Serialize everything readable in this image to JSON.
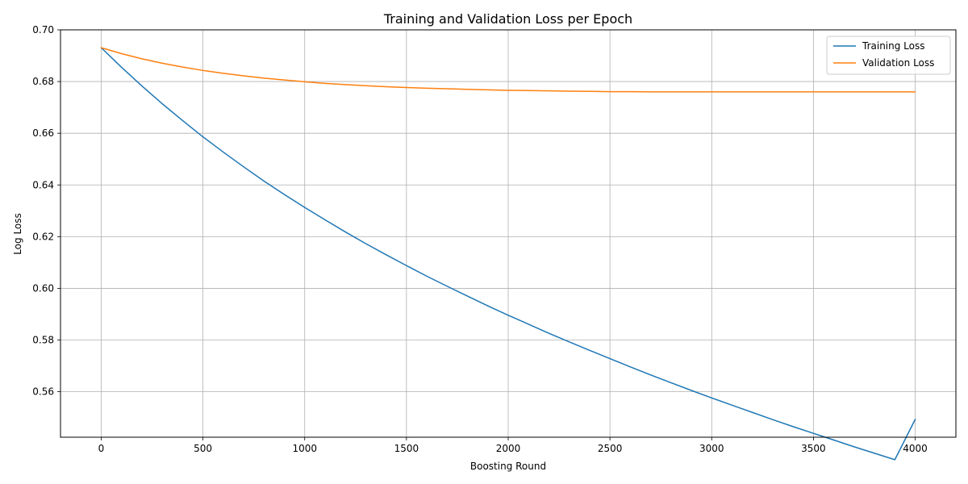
{
  "chart_data": {
    "type": "line",
    "title": "Training and Validation Loss per Epoch",
    "xlabel": "Boosting Round",
    "ylabel": "Log Loss",
    "xlim": [
      -200,
      4200
    ],
    "ylim": [
      0.5424,
      0.7
    ],
    "xticks": [
      0,
      500,
      1000,
      1500,
      2000,
      2500,
      3000,
      3500,
      4000
    ],
    "xtick_labels": [
      "0",
      "500",
      "1000",
      "1500",
      "2000",
      "2500",
      "3000",
      "3500",
      "4000"
    ],
    "yticks": [
      0.56,
      0.58,
      0.6,
      0.62,
      0.64,
      0.66,
      0.68,
      0.7
    ],
    "ytick_labels": [
      "0.56",
      "0.58",
      "0.60",
      "0.62",
      "0.64",
      "0.66",
      "0.68",
      "0.70"
    ],
    "grid": true,
    "legend_position": "top-right",
    "x": [
      0,
      100,
      200,
      300,
      400,
      500,
      600,
      700,
      800,
      900,
      1000,
      1100,
      1200,
      1300,
      1400,
      1500,
      1600,
      1700,
      1800,
      1900,
      2000,
      2100,
      2200,
      2300,
      2400,
      2500,
      2600,
      2700,
      2800,
      2900,
      3000,
      3100,
      3200,
      3300,
      3400,
      3500,
      3600,
      3700,
      3800,
      3900,
      4000
    ],
    "series": [
      {
        "name": "Training Loss",
        "color": "#1f77b4",
        "values": [
          0.6931,
          0.6855,
          0.6783,
          0.6714,
          0.6649,
          0.6586,
          0.6527,
          0.647,
          0.6415,
          0.6363,
          0.6313,
          0.6265,
          0.6218,
          0.6173,
          0.613,
          0.6088,
          0.6047,
          0.6008,
          0.597,
          0.5932,
          0.5896,
          0.5861,
          0.5826,
          0.5793,
          0.576,
          0.5728,
          0.5696,
          0.5665,
          0.5635,
          0.5605,
          0.5576,
          0.5548,
          0.552,
          0.5492,
          0.5465,
          0.5439,
          0.5413,
          0.5387,
          0.5362,
          0.5337,
          0.5493
        ]
      },
      {
        "name": "Validation Loss",
        "color": "#ff7f0e",
        "values": [
          0.6931,
          0.6908,
          0.6888,
          0.6871,
          0.6856,
          0.6843,
          0.6832,
          0.6822,
          0.6813,
          0.6806,
          0.6799,
          0.6793,
          0.6788,
          0.6784,
          0.678,
          0.6777,
          0.6774,
          0.6772,
          0.677,
          0.6768,
          0.6766,
          0.6765,
          0.6764,
          0.6763,
          0.6762,
          0.6761,
          0.6761,
          0.676,
          0.676,
          0.676,
          0.676,
          0.676,
          0.676,
          0.676,
          0.676,
          0.676,
          0.676,
          0.676,
          0.676,
          0.676,
          0.676
        ]
      }
    ]
  }
}
